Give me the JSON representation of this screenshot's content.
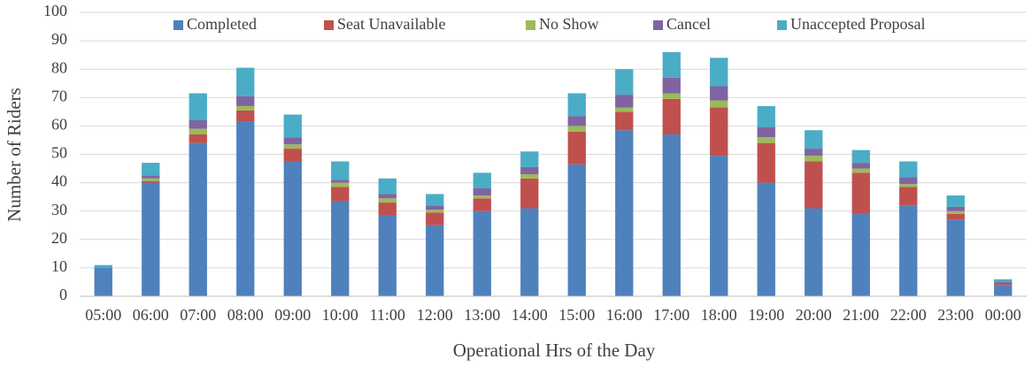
{
  "chart_data": {
    "type": "stacked_bar",
    "x_label": "Operational Hrs of the Day",
    "y_label": "Number of Riders",
    "categories": [
      "05:00",
      "06:00",
      "07:00",
      "08:00",
      "09:00",
      "10:00",
      "11:00",
      "12:00",
      "13:00",
      "14:00",
      "15:00",
      "16:00",
      "17:00",
      "18:00",
      "19:00",
      "20:00",
      "21:00",
      "22:00",
      "23:00",
      "00:00"
    ],
    "series": [
      {
        "name": "Completed",
        "color": "#4f81bd",
        "values": [
          10,
          40,
          54,
          61.5,
          47.5,
          33.5,
          28.5,
          25,
          30,
          31,
          46.5,
          58.5,
          57,
          49.5,
          40,
          31,
          29,
          32,
          27,
          4
        ]
      },
      {
        "name": "Seat Unavailable",
        "color": "#c0504d",
        "values": [
          0,
          0.5,
          3,
          4,
          4.5,
          5,
          4.5,
          4.5,
          4.5,
          10.5,
          11.5,
          6.5,
          12.5,
          17,
          14,
          16.5,
          14.5,
          6.5,
          2,
          0.5
        ]
      },
      {
        "name": "No Show",
        "color": "#9bbb59",
        "values": [
          0,
          1,
          2,
          1.5,
          1.5,
          1.5,
          1.5,
          1,
          1,
          1.5,
          2,
          1.5,
          2,
          2.5,
          2,
          2,
          1.5,
          1,
          1,
          0
        ]
      },
      {
        "name": "Cancel",
        "color": "#8064a2",
        "values": [
          0,
          1,
          3,
          3.5,
          2.5,
          1,
          1.5,
          1.5,
          2.5,
          2.5,
          3.5,
          4.5,
          5.5,
          5,
          3.5,
          2.5,
          2,
          2.5,
          1.5,
          0.5
        ]
      },
      {
        "name": "Unaccepted Proposal",
        "color": "#4bacc6",
        "values": [
          1,
          4.5,
          9.5,
          10,
          8,
          6.5,
          5.5,
          4,
          5.5,
          5.5,
          8,
          9,
          9,
          10,
          7.5,
          6.5,
          4.5,
          5.5,
          4,
          1
        ]
      }
    ],
    "ylim": [
      0,
      100
    ],
    "yticks": [
      0,
      10,
      20,
      30,
      40,
      50,
      60,
      70,
      80,
      90,
      100
    ],
    "grid": true,
    "legend": "top"
  }
}
